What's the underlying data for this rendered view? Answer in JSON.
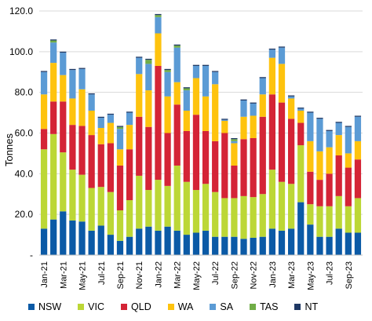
{
  "chart_data": {
    "type": "bar",
    "stacked": true,
    "ylabel": "Tonnes",
    "ylim": [
      0,
      120
    ],
    "y_ticks": [
      "-",
      "20.0",
      "40.0",
      "60.0",
      "80.0",
      "100.0",
      "120.0"
    ],
    "grid": "horizontal",
    "legend_position": "bottom",
    "x_tick_labels": [
      "Jan-21",
      "Mar-21",
      "May-21",
      "Jul-21",
      "Sep-21",
      "Nov-21",
      "Jan-22",
      "Mar-22",
      "May-22",
      "Jul-22",
      "Sep-22",
      "Nov-22",
      "Jan-23",
      "Mar-23",
      "May-23",
      "Jul-23",
      "Sep-23"
    ],
    "categories": [
      "Jan-21",
      "Feb-21",
      "Mar-21",
      "Apr-21",
      "May-21",
      "Jun-21",
      "Jul-21",
      "Aug-21",
      "Sep-21",
      "Oct-21",
      "Nov-21",
      "Dec-21",
      "Jan-22",
      "Feb-22",
      "Mar-22",
      "Apr-22",
      "May-22",
      "Jun-22",
      "Jul-22",
      "Aug-22",
      "Sep-22",
      "Oct-22",
      "Nov-22",
      "Dec-22",
      "Jan-23",
      "Feb-23",
      "Mar-23",
      "Apr-23",
      "May-23",
      "Jun-23",
      "Jul-23",
      "Aug-23",
      "Sep-23",
      "Oct-23"
    ],
    "series": [
      {
        "name": "NSW",
        "color": "#0b5aa6",
        "values": [
          13,
          17.5,
          21.5,
          17,
          16.5,
          12,
          14.5,
          10,
          7,
          9,
          13,
          14,
          12,
          14,
          12,
          10,
          11,
          12,
          9,
          9,
          9,
          8,
          8.5,
          9,
          13,
          12,
          13,
          26,
          15,
          9,
          9,
          13,
          11,
          11
        ]
      },
      {
        "name": "VIC",
        "color": "#bcd736",
        "values": [
          39,
          42,
          29,
          25,
          23,
          21,
          19,
          21,
          15,
          18,
          26,
          18,
          25,
          20,
          32,
          26,
          21,
          23,
          22,
          19,
          19,
          21,
          20,
          21,
          29,
          24,
          22,
          28,
          10,
          15,
          15,
          16,
          13,
          17
        ]
      },
      {
        "name": "QLD",
        "color": "#d42436",
        "values": [
          10,
          16,
          25,
          22,
          24,
          26,
          21,
          24,
          22,
          25,
          29,
          31,
          56,
          26,
          30,
          25,
          37,
          26,
          25,
          32,
          16,
          28,
          29,
          38,
          37,
          39,
          32,
          11,
          16,
          13,
          16,
          20,
          19,
          19
        ]
      },
      {
        "name": "WA",
        "color": "#fec30e",
        "values": [
          17,
          19,
          13,
          13,
          18,
          12,
          8,
          10,
          8,
          12,
          21,
          18,
          16,
          18,
          11,
          10,
          18,
          17,
          28,
          6,
          11,
          11,
          11,
          11,
          18,
          19,
          10,
          6,
          15,
          14,
          13,
          10,
          7,
          9
        ]
      },
      {
        "name": "SA",
        "color": "#5b9bd5",
        "values": [
          11,
          10,
          11,
          14,
          10,
          8,
          5,
          4,
          10,
          6,
          8,
          13,
          8,
          12,
          17,
          10,
          6,
          15,
          6,
          0.5,
          1,
          8,
          6,
          8,
          4,
          8,
          1,
          1,
          14,
          16,
          8,
          6,
          13,
          12
        ]
      },
      {
        "name": "TAS",
        "color": "#70ad47",
        "values": [
          0,
          1,
          0,
          0,
          0,
          0,
          0,
          0,
          1,
          0,
          0,
          2,
          1,
          1,
          1,
          1,
          0,
          0,
          0,
          0,
          1,
          0,
          0,
          0,
          0,
          0,
          0,
          0,
          0,
          0,
          0,
          0,
          0,
          0
        ]
      },
      {
        "name": "NT",
        "color": "#1f3864",
        "values": [
          0.5,
          0.5,
          0.5,
          0.5,
          0.5,
          0.5,
          0.5,
          0.5,
          0.5,
          0.5,
          0.5,
          0.5,
          0.5,
          0.5,
          0.5,
          0.5,
          0.5,
          0.5,
          0.5,
          0.5,
          0.5,
          0.5,
          0.5,
          0.5,
          0.5,
          0.5,
          0.5,
          0.5,
          0.5,
          0.5,
          0.5,
          0.5,
          0.5,
          0.5
        ]
      }
    ]
  }
}
